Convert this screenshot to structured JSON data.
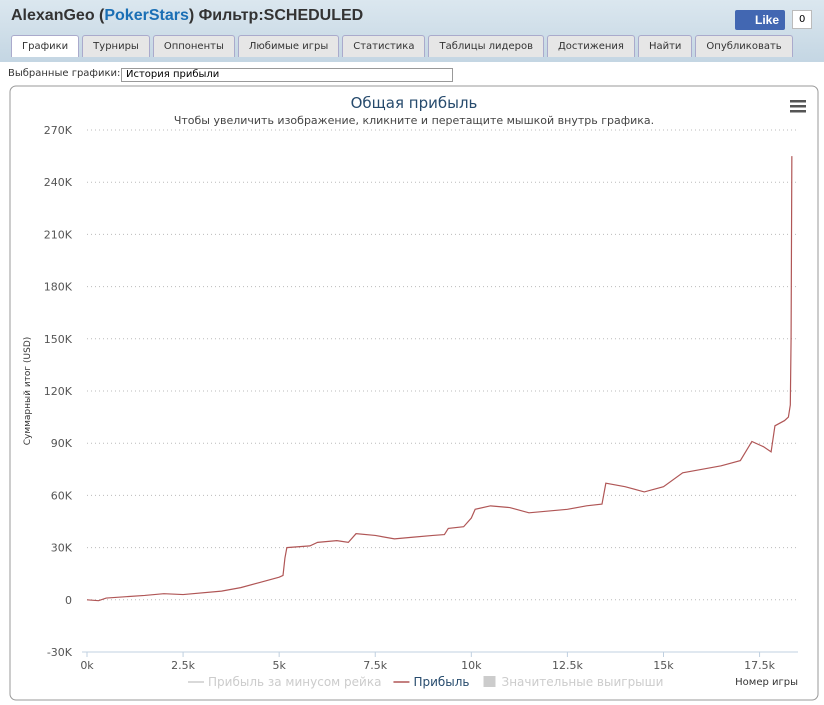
{
  "header": {
    "title": [
      "AlexanGeo (",
      "PokerStars",
      ") Фильтр:SCHEDULED"
    ],
    "like": "Like",
    "like_count": "0"
  },
  "tabs": [
    "Графики",
    "Турниры",
    "Оппоненты",
    "Любимые игры",
    "Статистика",
    "Таблицы лидеров",
    "Достижения",
    "Найти",
    "Опубликовать"
  ],
  "selector": {
    "label": "Выбранные графики:",
    "value": "История прибыли"
  },
  "chart_data": {
    "type": "line",
    "title": "Общая прибыль",
    "subtitle": "Чтобы увеличить изображение, кликните и перетащите мышкой внутрь графика.",
    "y_label": "Суммарный итог (USD)",
    "x_label": "Номер игры",
    "xlim": [
      0,
      18500
    ],
    "ylim": [
      -30000,
      270000
    ],
    "grid": true,
    "xticks": [
      {
        "value": 0,
        "label": "0k"
      },
      {
        "value": 2500,
        "label": "2.5k"
      },
      {
        "value": 5000,
        "label": "5k"
      },
      {
        "value": 7500,
        "label": "7.5k"
      },
      {
        "value": 10000,
        "label": "10k"
      },
      {
        "value": 12500,
        "label": "12.5k"
      },
      {
        "value": 15000,
        "label": "15k"
      },
      {
        "value": 17500,
        "label": "17.5k"
      }
    ],
    "yticks": [
      {
        "value": -30000,
        "label": "-30K"
      },
      0,
      {
        "value": 30000,
        "label": "30K"
      },
      {
        "value": 60000,
        "label": "60K"
      },
      {
        "value": 90000,
        "label": "90K"
      },
      {
        "value": 120000,
        "label": "120K"
      },
      {
        "value": 150000,
        "label": "150K"
      },
      {
        "value": 180000,
        "label": "180K"
      },
      {
        "value": 210000,
        "label": "210K"
      },
      {
        "value": 240000,
        "label": "240K"
      },
      {
        "value": 270000,
        "label": "270K"
      }
    ],
    "legend": [
      {
        "name": "Прибыль за минусом рейка",
        "color": "#cccccc",
        "hidden": true
      }
    ],
    "series": [
      {
        "name": "Прибыль",
        "color": "#b05656",
        "x": [
          0,
          300,
          500,
          1500,
          2000,
          2500,
          3500,
          4000,
          4500,
          5000,
          5100,
          5150,
          5200,
          5800,
          6000,
          6500,
          6800,
          7000,
          7500,
          8000,
          8500,
          9000,
          9300,
          9400,
          9800,
          10000,
          10100,
          10500,
          11000,
          11500,
          12000,
          12500,
          13000,
          13400,
          13500,
          14000,
          14500,
          15000,
          15500,
          16000,
          16500,
          17000,
          17300,
          17600,
          17800,
          17900,
          18150,
          18250,
          18300,
          18320,
          18340
        ],
        "values": [
          0,
          -500,
          1000,
          2500,
          3500,
          3000,
          5000,
          7000,
          10000,
          13000,
          14000,
          24000,
          30000,
          31000,
          33000,
          34000,
          33000,
          38000,
          37000,
          35000,
          36000,
          37000,
          37500,
          41000,
          42000,
          47000,
          52000,
          54000,
          53000,
          50000,
          51000,
          52000,
          54000,
          55000,
          67000,
          65000,
          62000,
          65000,
          73000,
          75000,
          77000,
          80000,
          91000,
          88000,
          85000,
          100000,
          103000,
          105000,
          112000,
          150000,
          255000
        ]
      }
    ],
    "legend_after": [
      {
        "name": "Значительные выигрыши",
        "color": "#cccccc",
        "hidden": true
      }
    ]
  }
}
